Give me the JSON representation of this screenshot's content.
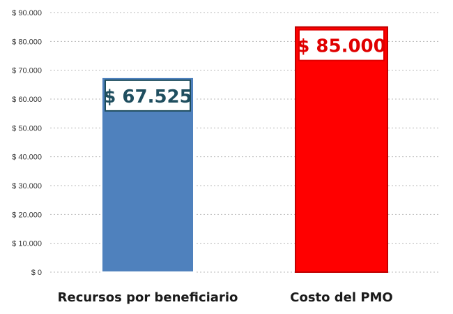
{
  "chart_data": {
    "type": "bar",
    "categories": [
      "Recursos por beneficiario",
      "Costo del PMO"
    ],
    "values": [
      67525,
      85000
    ],
    "data_labels": [
      "$ 67.525",
      "$ 85.000"
    ],
    "ylim": [
      0,
      90000
    ],
    "y_tick_values": [
      0,
      10000,
      20000,
      30000,
      40000,
      50000,
      60000,
      70000,
      80000,
      90000
    ],
    "y_tick_labels": [
      "$ 0",
      "$ 10.000",
      "$ 20.000",
      "$ 30.000",
      "$ 40.000",
      "$ 50.000",
      "$ 60.000",
      "$ 70.000",
      "$ 80.000",
      "$ 90.000"
    ],
    "grid": true,
    "legend": false,
    "colors": {
      "bars": [
        "#4f81bd",
        "#ff0000"
      ],
      "bar_borders": [
        "#ffffff",
        "#c00000"
      ],
      "label_text": [
        "#1f4e5f",
        "#e00000"
      ],
      "label_box_borders": [
        "#1f4e5f",
        "#e00000"
      ]
    }
  }
}
